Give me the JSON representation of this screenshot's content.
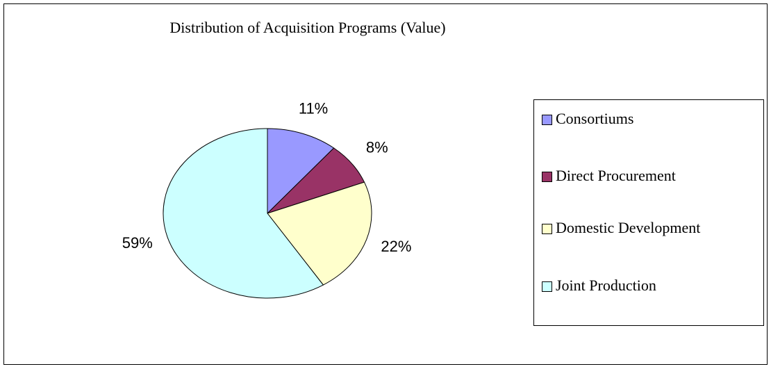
{
  "chart_data": {
    "type": "pie",
    "title": "Distribution of Acquisition Programs (Value)",
    "categories": [
      "Consortiums",
      "Direct Procurement",
      "Domestic Development",
      "Joint Production"
    ],
    "values": [
      11,
      8,
      22,
      59
    ],
    "value_labels": [
      "11%",
      "8%",
      "22%",
      "59%"
    ],
    "colors": [
      "#9999ff",
      "#993366",
      "#ffffcc",
      "#ccffff"
    ],
    "legend": "right"
  }
}
